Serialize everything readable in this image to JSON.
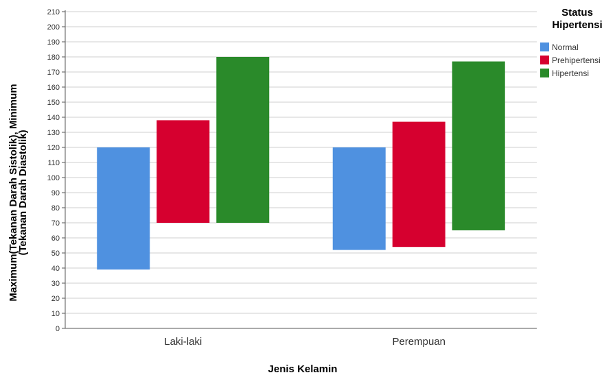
{
  "chart_data": {
    "type": "bar",
    "subtype": "floating-range",
    "categories": [
      "Laki-laki",
      "Perempuan"
    ],
    "series": [
      {
        "name": "Normal",
        "color": "#4f91e0",
        "ranges": [
          [
            39,
            120
          ],
          [
            52,
            120
          ]
        ]
      },
      {
        "name": "Prehipertensi",
        "color": "#d6002f",
        "ranges": [
          [
            70,
            138
          ],
          [
            54,
            137
          ]
        ]
      },
      {
        "name": "Hipertensi",
        "color": "#2a8a2a",
        "ranges": [
          [
            70,
            180
          ],
          [
            65,
            177
          ]
        ]
      }
    ],
    "xlabel": "Jenis Kelamin",
    "ylabel_line1": "Maximum(Tekanan Darah Sistolik), Minimum",
    "ylabel_line2": "(Tekanan Darah Diastolik)",
    "ylim": [
      0,
      210
    ],
    "yticks": [
      0,
      10,
      20,
      30,
      40,
      50,
      60,
      70,
      80,
      90,
      100,
      110,
      120,
      130,
      140,
      150,
      160,
      170,
      180,
      190,
      200,
      210
    ],
    "grid": true,
    "legend": {
      "title_line1": "Status",
      "title_line2": "Hipertensi",
      "position": "right"
    }
  }
}
